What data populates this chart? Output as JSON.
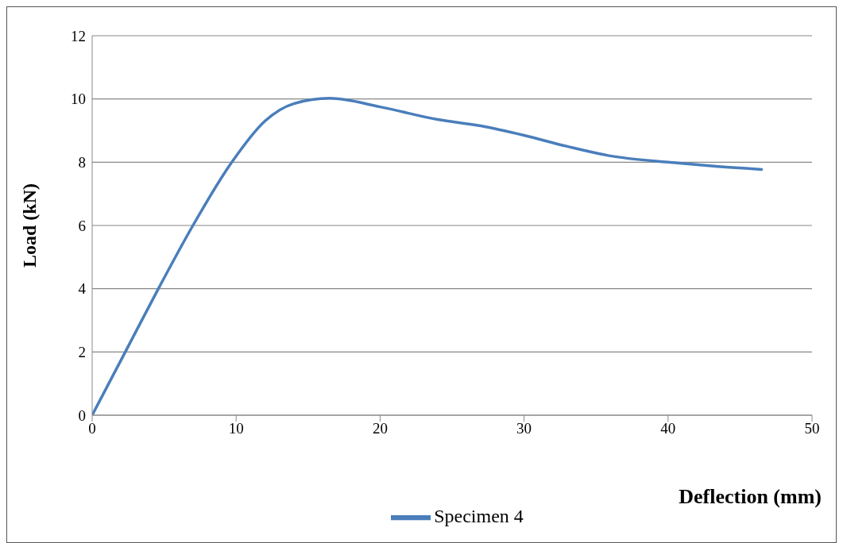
{
  "chart_data": {
    "type": "line",
    "xlabel": "Deflection (mm)",
    "ylabel": "Load (kN)",
    "x": [
      0,
      2.3,
      4.6,
      7,
      9.7,
      12,
      14,
      16.5,
      20,
      24,
      27,
      30,
      33,
      36,
      40,
      43,
      46.5
    ],
    "series": [
      {
        "name": "Specimen 4",
        "color": "#4a7ebb",
        "values": [
          0,
          2,
          4,
          6,
          8,
          9.3,
          9.85,
          10.02,
          9.75,
          9.35,
          9.15,
          8.85,
          8.5,
          8.2,
          8.0,
          7.88,
          7.77
        ]
      }
    ],
    "xlim": [
      0,
      50
    ],
    "xticks": [
      0,
      10,
      20,
      30,
      40,
      50
    ],
    "ylim": [
      0,
      12
    ],
    "yticks": [
      0,
      2,
      4,
      6,
      8,
      10,
      12
    ],
    "grid": "y",
    "legend": "bottom",
    "marker": "none",
    "line_style": "solid"
  }
}
